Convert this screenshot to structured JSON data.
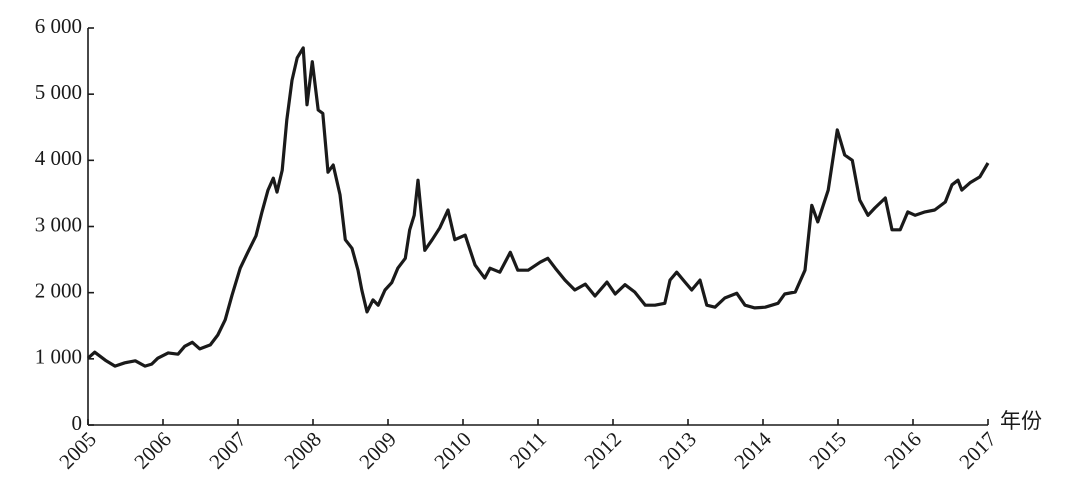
{
  "chart_data": {
    "type": "line",
    "xlabel": "年份",
    "color": "#1a1a1a",
    "x": [
      2005.0,
      2005.09,
      2005.23,
      2005.36,
      2005.49,
      2005.63,
      2005.76,
      2005.85,
      2005.93,
      2006.07,
      2006.2,
      2006.29,
      2006.39,
      2006.49,
      2006.63,
      2006.73,
      2006.83,
      2006.92,
      2007.03,
      2007.13,
      2007.24,
      2007.32,
      2007.4,
      2007.47,
      2007.52,
      2007.59,
      2007.65,
      2007.72,
      2007.79,
      2007.87,
      2007.92,
      2007.99,
      2008.07,
      2008.13,
      2008.2,
      2008.27,
      2008.36,
      2008.43,
      2008.52,
      2008.6,
      2008.65,
      2008.72,
      2008.8,
      2008.87,
      2008.96,
      2009.05,
      2009.13,
      2009.23,
      2009.29,
      2009.35,
      2009.4,
      2009.49,
      2009.59,
      2009.69,
      2009.8,
      2009.89,
      2010.03,
      2010.16,
      2010.29,
      2010.36,
      2010.49,
      2010.63,
      2010.73,
      2010.87,
      2011.03,
      2011.13,
      2011.23,
      2011.36,
      2011.49,
      2011.63,
      2011.76,
      2011.92,
      2012.03,
      2012.16,
      2012.29,
      2012.43,
      2012.56,
      2012.69,
      2012.76,
      2012.85,
      2012.96,
      2013.05,
      2013.16,
      2013.25,
      2013.36,
      2013.49,
      2013.65,
      2013.76,
      2013.89,
      2014.03,
      2014.2,
      2014.29,
      2014.43,
      2014.56,
      2014.65,
      2014.73,
      2014.87,
      2014.99,
      2015.09,
      2015.19,
      2015.29,
      2015.4,
      2015.49,
      2015.63,
      2015.72,
      2015.83,
      2015.93,
      2016.03,
      2016.16,
      2016.29,
      2016.43,
      2016.52,
      2016.6,
      2016.65,
      2016.76,
      2016.89,
      2017.0
    ],
    "values": [
      1010,
      1100,
      980,
      890,
      940,
      970,
      890,
      920,
      1010,
      1090,
      1070,
      1190,
      1250,
      1150,
      1210,
      1360,
      1590,
      1960,
      2370,
      2610,
      2860,
      3220,
      3550,
      3730,
      3520,
      3850,
      4610,
      5210,
      5550,
      5700,
      4840,
      5490,
      4760,
      4710,
      3820,
      3930,
      3480,
      2800,
      2670,
      2340,
      2040,
      1710,
      1890,
      1810,
      2040,
      2150,
      2370,
      2520,
      2950,
      3170,
      3700,
      2640,
      2800,
      2980,
      3250,
      2800,
      2870,
      2420,
      2220,
      2370,
      2310,
      2610,
      2340,
      2340,
      2460,
      2520,
      2370,
      2190,
      2040,
      2130,
      1950,
      2160,
      1980,
      2120,
      2010,
      1810,
      1810,
      1840,
      2190,
      2310,
      2160,
      2040,
      2190,
      1810,
      1780,
      1920,
      1990,
      1810,
      1770,
      1780,
      1840,
      1980,
      2010,
      2340,
      3320,
      3070,
      3550,
      4460,
      4080,
      4000,
      3400,
      3170,
      3280,
      3430,
      2950,
      2950,
      3220,
      3170,
      3220,
      3250,
      3370,
      3630,
      3700,
      3550,
      3660,
      3750,
      3960
    ],
    "xlim": [
      2005,
      2017
    ],
    "xticks": [
      2005,
      2006,
      2007,
      2008,
      2009,
      2010,
      2011,
      2012,
      2013,
      2014,
      2015,
      2016,
      2017
    ],
    "ylim": [
      0,
      6000
    ],
    "yticks": [
      0,
      {
        "value": 1000,
        "label": "1 000"
      },
      {
        "value": 2000,
        "label": "2 000"
      },
      {
        "value": 3000,
        "label": "3 000"
      },
      {
        "value": 4000,
        "label": "4 000"
      },
      {
        "value": 5000,
        "label": "5 000"
      },
      {
        "value": 6000,
        "label": "6 000"
      }
    ]
  }
}
